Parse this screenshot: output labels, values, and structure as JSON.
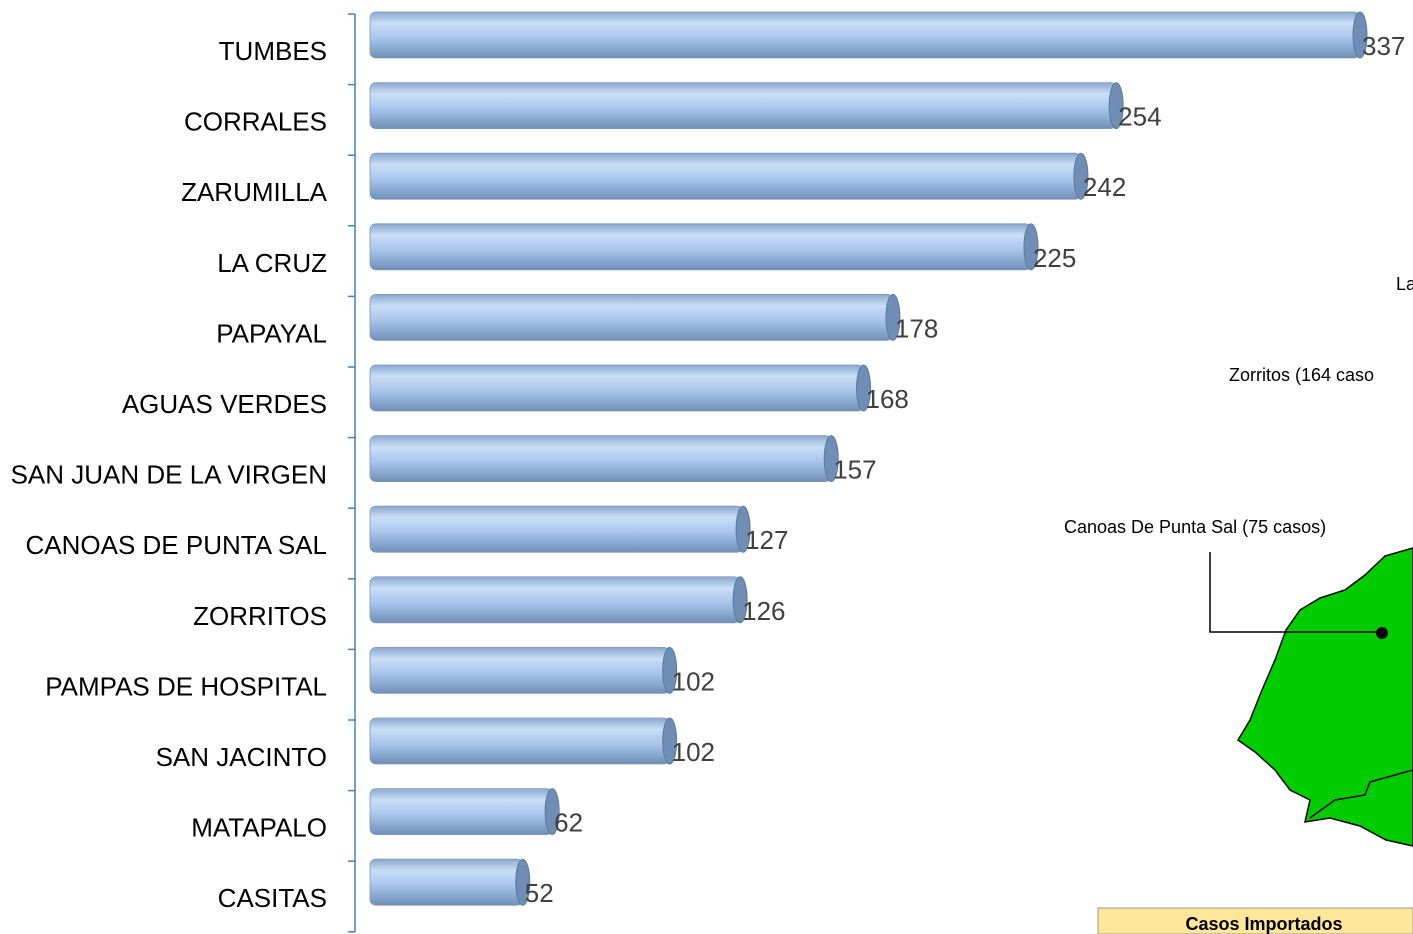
{
  "chart_data": {
    "type": "bar",
    "orientation": "horizontal",
    "categories": [
      "TUMBES",
      "CORRALES",
      "ZARUMILLA",
      "LA CRUZ",
      "PAPAYAL",
      "AGUAS VERDES",
      "SAN JUAN DE LA VIRGEN",
      "CANOAS DE PUNTA SAL",
      "ZORRITOS",
      "PAMPAS DE HOSPITAL",
      "SAN JACINTO",
      "MATAPALO",
      "CASITAS"
    ],
    "values": [
      337,
      254,
      242,
      225,
      178,
      168,
      157,
      127,
      126,
      102,
      102,
      62,
      52
    ],
    "color": "#9dbfe8"
  },
  "map": {
    "labels": [
      "La",
      "Zorritos (164 caso",
      "Canoas De Punta Sal (75 casos)"
    ],
    "table_header": "Casos Importados"
  }
}
